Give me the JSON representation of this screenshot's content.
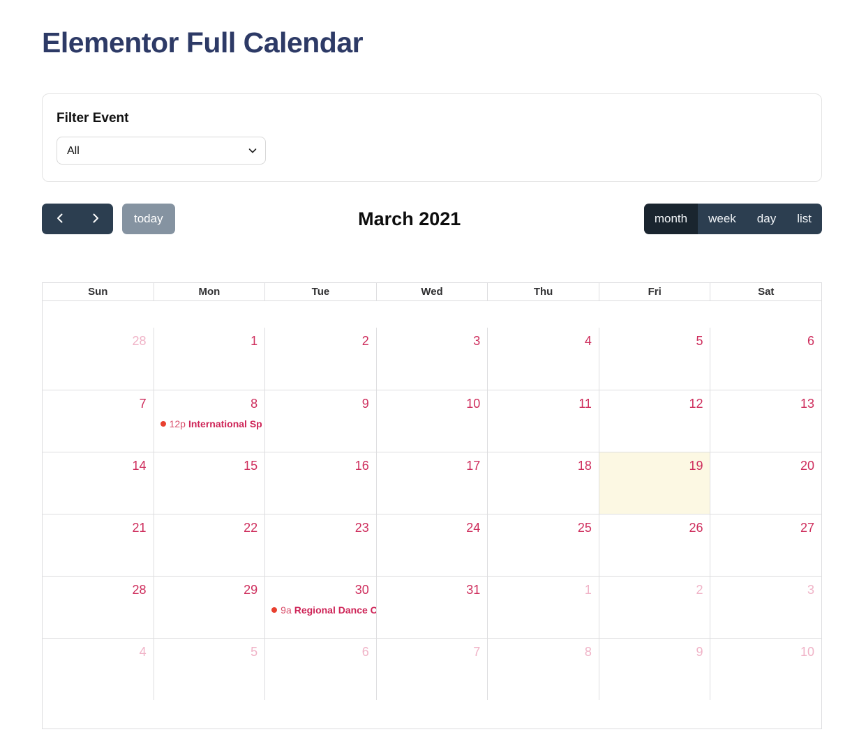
{
  "page": {
    "title": "Elementor Full Calendar"
  },
  "filter": {
    "label": "Filter Event",
    "selected_option": "All"
  },
  "toolbar": {
    "today_label": "today",
    "title": "March 2021",
    "views": [
      {
        "label": "month",
        "active": true
      },
      {
        "label": "week",
        "active": false
      },
      {
        "label": "day",
        "active": false
      },
      {
        "label": "list",
        "active": false
      }
    ]
  },
  "calendar": {
    "day_headers": [
      "Sun",
      "Mon",
      "Tue",
      "Wed",
      "Thu",
      "Fri",
      "Sat"
    ],
    "weeks": [
      [
        {
          "n": "28",
          "out": true
        },
        {
          "n": "1"
        },
        {
          "n": "2"
        },
        {
          "n": "3"
        },
        {
          "n": "4"
        },
        {
          "n": "5"
        },
        {
          "n": "6"
        }
      ],
      [
        {
          "n": "7"
        },
        {
          "n": "8",
          "event": {
            "time": "12p",
            "title": "International Sp"
          }
        },
        {
          "n": "9"
        },
        {
          "n": "10"
        },
        {
          "n": "11"
        },
        {
          "n": "12"
        },
        {
          "n": "13"
        }
      ],
      [
        {
          "n": "14"
        },
        {
          "n": "15"
        },
        {
          "n": "16"
        },
        {
          "n": "17"
        },
        {
          "n": "18"
        },
        {
          "n": "19",
          "today": true
        },
        {
          "n": "20"
        }
      ],
      [
        {
          "n": "21"
        },
        {
          "n": "22"
        },
        {
          "n": "23"
        },
        {
          "n": "24"
        },
        {
          "n": "25"
        },
        {
          "n": "26"
        },
        {
          "n": "27"
        }
      ],
      [
        {
          "n": "28"
        },
        {
          "n": "29"
        },
        {
          "n": "30",
          "event": {
            "time": "9a",
            "title": "Regional Dance C"
          }
        },
        {
          "n": "31"
        },
        {
          "n": "1",
          "out": true
        },
        {
          "n": "2",
          "out": true
        },
        {
          "n": "3",
          "out": true
        }
      ],
      [
        {
          "n": "4",
          "out": true
        },
        {
          "n": "5",
          "out": true
        },
        {
          "n": "6",
          "out": true
        },
        {
          "n": "7",
          "out": true
        },
        {
          "n": "8",
          "out": true
        },
        {
          "n": "9",
          "out": true
        },
        {
          "n": "10",
          "out": true
        }
      ]
    ]
  },
  "colors": {
    "heading": "#2d3a66",
    "card_border": "#e3e3e3",
    "button_bg": "#2c3e50",
    "button_active_bg": "#1a252f",
    "today_button_bg": "#8593a1",
    "grid_border": "#dddddf",
    "date_number": "#ce2d5c",
    "date_number_faded": "#f0b3c7",
    "today_cell_bg": "#fcf8e3",
    "event_dot": "#e8402f",
    "event_time": "#d94f6b",
    "event_title": "#ce2457"
  }
}
